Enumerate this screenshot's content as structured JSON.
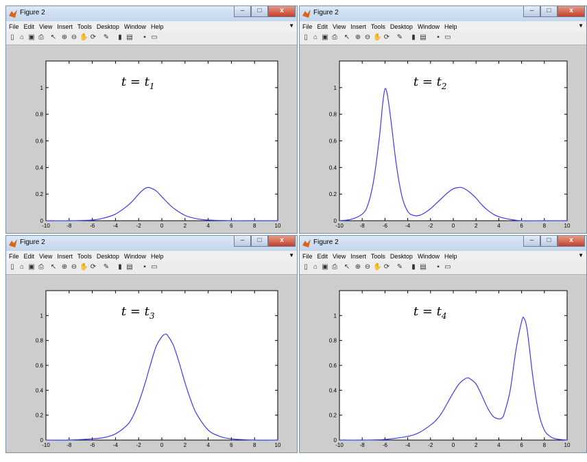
{
  "windows": [
    {
      "title": "Figure 2",
      "menus": [
        "File",
        "Edit",
        "View",
        "Insert",
        "Tools",
        "Desktop",
        "Window",
        "Help"
      ]
    },
    {
      "title": "Figure 2",
      "menus": [
        "File",
        "Edit",
        "View",
        "Insert",
        "Tools",
        "Desktop",
        "Window",
        "Help"
      ]
    },
    {
      "title": "Figure 2",
      "menus": [
        "File",
        "Edit",
        "View",
        "Insert",
        "Tools",
        "Desktop",
        "Window",
        "Help"
      ]
    },
    {
      "title": "Figure 2",
      "menus": [
        "File",
        "Edit",
        "View",
        "Insert",
        "Tools",
        "Desktop",
        "Window",
        "Help"
      ]
    }
  ],
  "window_controls": {
    "minimize": "–",
    "maximize": "□",
    "close": "x"
  },
  "toolbar_icons": [
    "new-file-icon",
    "open-folder-icon",
    "save-icon",
    "print-icon",
    "pointer-icon",
    "zoom-in-icon",
    "zoom-out-icon",
    "pan-hand-icon",
    "rotate-3d-icon",
    "data-cursor-icon",
    "colorbar-icon",
    "legend-icon",
    "hide-plot-tools-icon",
    "show-plot-tools-icon"
  ],
  "colors": {
    "line": "#3a3af0",
    "window_bg": "#cdcdcd",
    "axes_bg": "#ffffff"
  },
  "chart_data": [
    {
      "type": "line",
      "annotation": {
        "base": "t = t",
        "sub": "1"
      },
      "xlim": [
        -10,
        10
      ],
      "ylim": [
        0,
        1.2
      ],
      "xticks": [
        -10,
        -8,
        -6,
        -4,
        -2,
        0,
        2,
        4,
        6,
        8,
        10
      ],
      "yticks": [
        0,
        0.2,
        0.4,
        0.6,
        0.8,
        1
      ],
      "xtick_labels": [
        "-10",
        "-8",
        "-6",
        "-4",
        "-2",
        "0",
        "2",
        "4",
        "6",
        "8",
        "10"
      ],
      "ytick_labels": [
        "0",
        "0.2",
        "0.4",
        "0.6",
        "0.8",
        "1"
      ],
      "x": [
        -10,
        -8,
        -6,
        -5,
        -4,
        -3,
        -2.5,
        -2,
        -1.5,
        -1.2,
        -1,
        -0.5,
        0,
        0.5,
        1,
        2,
        3,
        4,
        6,
        8,
        10
      ],
      "y": [
        0,
        0,
        0.005,
        0.02,
        0.05,
        0.11,
        0.15,
        0.2,
        0.24,
        0.25,
        0.247,
        0.225,
        0.18,
        0.135,
        0.095,
        0.04,
        0.015,
        0.005,
        0,
        0,
        0
      ]
    },
    {
      "type": "line",
      "annotation": {
        "base": "t = t",
        "sub": "2"
      },
      "xlim": [
        -10,
        10
      ],
      "ylim": [
        0,
        1.2
      ],
      "xticks": [
        -10,
        -8,
        -6,
        -4,
        -2,
        0,
        2,
        4,
        6,
        8,
        10
      ],
      "yticks": [
        0,
        0.2,
        0.4,
        0.6,
        0.8,
        1
      ],
      "xtick_labels": [
        "-10",
        "-8",
        "-6",
        "-4",
        "-2",
        "0",
        "2",
        "4",
        "6",
        "8",
        "10"
      ],
      "ytick_labels": [
        "0",
        "0.2",
        "0.4",
        "0.6",
        "0.8",
        "1"
      ],
      "x": [
        -10,
        -9,
        -8,
        -7.5,
        -7,
        -6.5,
        -6.2,
        -6,
        -5.8,
        -5.5,
        -5,
        -4.5,
        -4,
        -3.5,
        -3,
        -2.5,
        -2,
        -1.5,
        -1,
        -0.5,
        0,
        0.5,
        0.7,
        1,
        1.5,
        2,
        2.5,
        3,
        3.5,
        4,
        5,
        6,
        8,
        10
      ],
      "y": [
        0,
        0.01,
        0.05,
        0.12,
        0.3,
        0.62,
        0.88,
        0.99,
        0.95,
        0.77,
        0.42,
        0.18,
        0.07,
        0.04,
        0.04,
        0.06,
        0.09,
        0.13,
        0.17,
        0.21,
        0.24,
        0.25,
        0.25,
        0.24,
        0.21,
        0.17,
        0.12,
        0.08,
        0.05,
        0.03,
        0.01,
        0,
        0,
        0
      ]
    },
    {
      "type": "line",
      "annotation": {
        "base": "t = t",
        "sub": "3"
      },
      "xlim": [
        -10,
        10
      ],
      "ylim": [
        0,
        1.2
      ],
      "xticks": [
        -10,
        -8,
        -6,
        -4,
        -2,
        0,
        2,
        4,
        6,
        8,
        10
      ],
      "yticks": [
        0,
        0.2,
        0.4,
        0.6,
        0.8,
        1
      ],
      "xtick_labels": [
        "-10",
        "-8",
        "-6",
        "-4",
        "-2",
        "0",
        "2",
        "4",
        "6",
        "8",
        "10"
      ],
      "ytick_labels": [
        "0",
        "0.2",
        "0.4",
        "0.6",
        "0.8",
        "1"
      ],
      "x": [
        -10,
        -8,
        -6,
        -5,
        -4,
        -3,
        -2.5,
        -2,
        -1.5,
        -1,
        -0.5,
        0,
        0.3,
        0.5,
        1,
        1.5,
        2,
        2.5,
        3,
        4,
        5,
        6,
        8,
        10
      ],
      "y": [
        0,
        0,
        0.01,
        0.02,
        0.05,
        0.12,
        0.19,
        0.3,
        0.44,
        0.6,
        0.75,
        0.83,
        0.85,
        0.84,
        0.76,
        0.62,
        0.46,
        0.32,
        0.21,
        0.08,
        0.03,
        0.01,
        0,
        0
      ]
    },
    {
      "type": "line",
      "annotation": {
        "base": "t = t",
        "sub": "4"
      },
      "xlim": [
        -10,
        10
      ],
      "ylim": [
        0,
        1.2
      ],
      "xticks": [
        -10,
        -8,
        -6,
        -4,
        -2,
        0,
        2,
        4,
        6,
        8,
        10
      ],
      "yticks": [
        0,
        0.2,
        0.4,
        0.6,
        0.8,
        1
      ],
      "xtick_labels": [
        "-10",
        "-8",
        "-6",
        "-4",
        "-2",
        "0",
        "2",
        "4",
        "6",
        "8",
        "10"
      ],
      "ytick_labels": [
        "0",
        "0.2",
        "0.4",
        "0.6",
        "0.8",
        "1"
      ],
      "x": [
        -10,
        -8,
        -6,
        -4,
        -3,
        -2,
        -1.5,
        -1,
        -0.5,
        0,
        0.5,
        1,
        1.3,
        1.5,
        2,
        2.5,
        3,
        3.5,
        4,
        4.3,
        4.5,
        5,
        5.5,
        6,
        6.2,
        6.5,
        7,
        7.5,
        8,
        8.5,
        9,
        10
      ],
      "y": [
        0,
        0,
        0.005,
        0.03,
        0.06,
        0.12,
        0.16,
        0.22,
        0.3,
        0.38,
        0.45,
        0.49,
        0.5,
        0.49,
        0.45,
        0.36,
        0.26,
        0.19,
        0.17,
        0.18,
        0.22,
        0.4,
        0.72,
        0.95,
        0.98,
        0.88,
        0.5,
        0.22,
        0.08,
        0.03,
        0.01,
        0
      ]
    }
  ]
}
